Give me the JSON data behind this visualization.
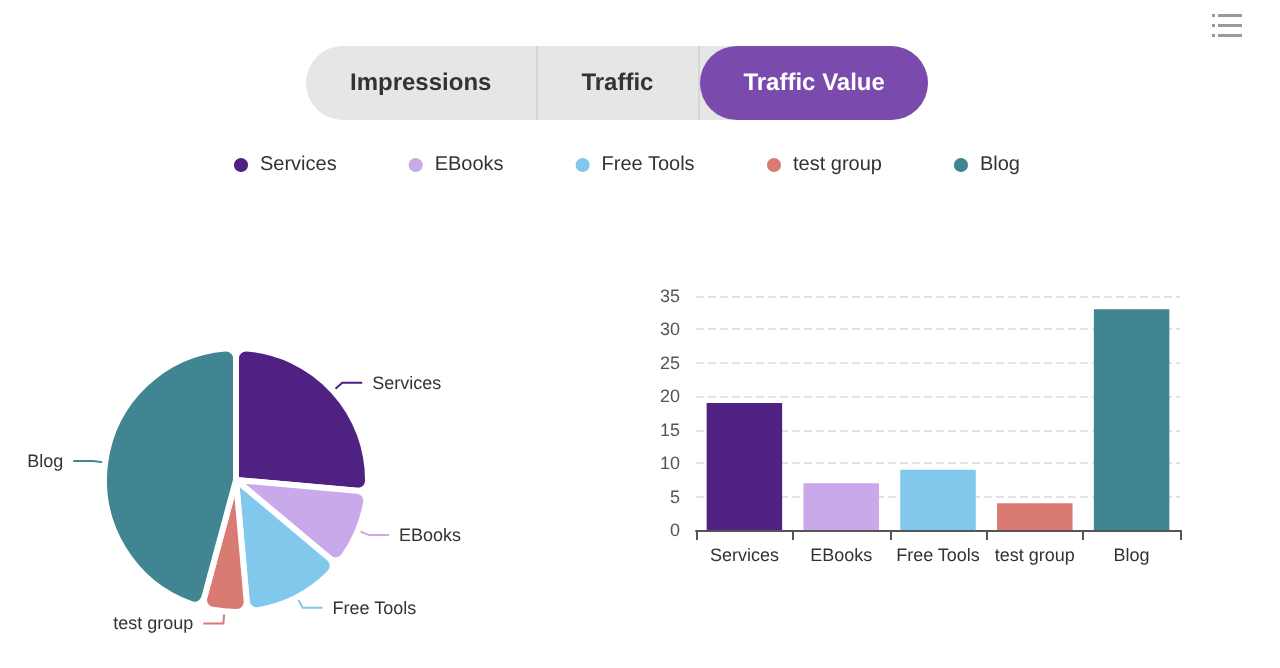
{
  "chart_data": [
    {
      "type": "other",
      "annotations": [
        "Impressions",
        "Traffic",
        "Traffic Value"
      ]
    },
    {
      "type": "pie",
      "categories": [
        "Services",
        "EBooks",
        "Free Tools",
        "test group",
        "Blog"
      ],
      "values": [
        26.4,
        9.7,
        12.5,
        5.6,
        45.8
      ],
      "colors": [
        "#4f2182",
        "#c9a9ea",
        "#82c8ec",
        "#d97b73",
        "#418593"
      ],
      "legend": "top"
    },
    {
      "type": "bar",
      "categories": [
        "Services",
        "EBooks",
        "Free Tools",
        "test group",
        "Blog"
      ],
      "values": [
        19,
        7,
        9,
        4,
        33
      ],
      "colors": [
        "#4f2182",
        "#c9a9ea",
        "#82c8ec",
        "#d97b73",
        "#418593"
      ],
      "ylim": [
        0,
        35
      ],
      "yticks": [
        0,
        5,
        10,
        15,
        20,
        25,
        30,
        35
      ],
      "grid": "y"
    }
  ]
}
